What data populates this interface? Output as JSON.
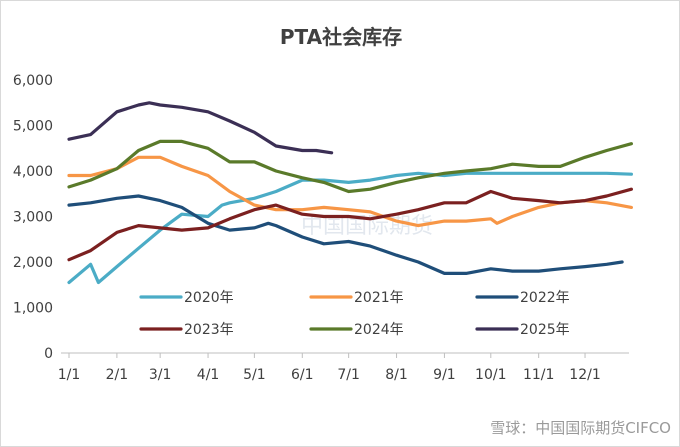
{
  "chart_data": {
    "type": "line",
    "title": "PTA社会库存",
    "xlabel": "",
    "ylabel": "",
    "ylim": [
      0,
      6000
    ],
    "yticks": [
      "0",
      "1,000",
      "2,000",
      "3,000",
      "4,000",
      "5,000",
      "6,000"
    ],
    "xticks": [
      "1/1",
      "2/1",
      "3/1",
      "4/1",
      "5/1",
      "6/1",
      "7/1",
      "8/1",
      "9/1",
      "10/1",
      "11/1",
      "12/1"
    ],
    "grid": false,
    "legend_position": "bottom-inside",
    "series": [
      {
        "name": "2020年",
        "color": "#4bacc6",
        "x": [
          "1/1",
          "1/15",
          "1/20",
          "2/1",
          "2/15",
          "3/1",
          "3/15",
          "4/1",
          "4/10",
          "4/15",
          "5/1",
          "5/15",
          "6/1",
          "6/15",
          "7/1",
          "7/15",
          "8/1",
          "8/15",
          "9/1",
          "9/15",
          "10/1",
          "10/15",
          "11/1",
          "11/15",
          "12/1",
          "12/15",
          "12/31"
        ],
        "y": [
          1550,
          1950,
          1550,
          1900,
          2300,
          2700,
          3050,
          3000,
          3250,
          3300,
          3400,
          3550,
          3800,
          3800,
          3750,
          3800,
          3900,
          3950,
          3900,
          3950,
          3950,
          3950,
          3950,
          3950,
          3950,
          3950,
          3930
        ]
      },
      {
        "name": "2021年",
        "color": "#f79646",
        "x": [
          "1/1",
          "1/15",
          "2/1",
          "2/15",
          "3/1",
          "3/15",
          "4/1",
          "4/15",
          "5/1",
          "5/15",
          "6/1",
          "6/15",
          "7/1",
          "7/15",
          "8/1",
          "8/15",
          "9/1",
          "9/15",
          "10/1",
          "10/5",
          "10/15",
          "11/1",
          "11/15",
          "12/1",
          "12/15",
          "12/31"
        ],
        "y": [
          3900,
          3900,
          4050,
          4300,
          4300,
          4100,
          3900,
          3550,
          3250,
          3150,
          3150,
          3200,
          3150,
          3100,
          2900,
          2800,
          2900,
          2900,
          2950,
          2850,
          3000,
          3200,
          3300,
          3350,
          3300,
          3200
        ]
      },
      {
        "name": "2022年",
        "color": "#1f4e79",
        "x": [
          "1/1",
          "1/15",
          "2/1",
          "2/15",
          "3/1",
          "3/15",
          "4/1",
          "4/15",
          "5/1",
          "5/10",
          "5/15",
          "6/1",
          "6/15",
          "7/1",
          "7/15",
          "8/1",
          "8/15",
          "9/1",
          "9/15",
          "10/1",
          "10/15",
          "11/1",
          "11/15",
          "12/1",
          "12/15",
          "12/25"
        ],
        "y": [
          3250,
          3300,
          3400,
          3450,
          3350,
          3200,
          2850,
          2700,
          2750,
          2850,
          2800,
          2550,
          2400,
          2450,
          2350,
          2150,
          2000,
          1750,
          1750,
          1850,
          1800,
          1800,
          1850,
          1900,
          1950,
          2000
        ]
      },
      {
        "name": "2023年",
        "color": "#7b2020",
        "x": [
          "1/1",
          "1/15",
          "2/1",
          "2/15",
          "3/1",
          "3/15",
          "4/1",
          "4/15",
          "5/1",
          "5/15",
          "6/1",
          "6/15",
          "7/1",
          "7/15",
          "8/1",
          "8/15",
          "9/1",
          "9/15",
          "10/1",
          "10/15",
          "11/1",
          "11/15",
          "12/1",
          "12/15",
          "12/31"
        ],
        "y": [
          2050,
          2250,
          2650,
          2800,
          2750,
          2700,
          2750,
          2950,
          3150,
          3250,
          3050,
          3000,
          3000,
          2950,
          3050,
          3150,
          3300,
          3300,
          3550,
          3400,
          3350,
          3300,
          3350,
          3450,
          3600
        ]
      },
      {
        "name": "2024年",
        "color": "#5a7a2a",
        "x": [
          "1/1",
          "1/15",
          "2/1",
          "2/15",
          "3/1",
          "3/15",
          "4/1",
          "4/15",
          "5/1",
          "5/15",
          "6/1",
          "6/15",
          "7/1",
          "7/15",
          "8/1",
          "8/15",
          "9/1",
          "9/15",
          "10/1",
          "10/15",
          "11/1",
          "11/15",
          "12/1",
          "12/15",
          "12/31"
        ],
        "y": [
          3650,
          3800,
          4050,
          4450,
          4650,
          4650,
          4500,
          4200,
          4200,
          4000,
          3850,
          3750,
          3550,
          3600,
          3750,
          3850,
          3950,
          4000,
          4050,
          4150,
          4100,
          4100,
          4300,
          4450,
          4600
        ]
      },
      {
        "name": "2025年",
        "color": "#3b2f55",
        "x": [
          "1/1",
          "1/15",
          "1/20",
          "2/1",
          "2/15",
          "2/22",
          "3/1",
          "3/15",
          "4/1",
          "4/15",
          "5/1",
          "5/15",
          "6/1",
          "6/10",
          "6/20"
        ],
        "y": [
          4700,
          4800,
          4950,
          5300,
          5450,
          5500,
          5450,
          5400,
          5300,
          5100,
          4850,
          4550,
          4450,
          4450,
          4400
        ]
      }
    ]
  },
  "watermark": {
    "center": "中国国际期货",
    "corner": "雪球：中国国际期货CIFCO"
  }
}
